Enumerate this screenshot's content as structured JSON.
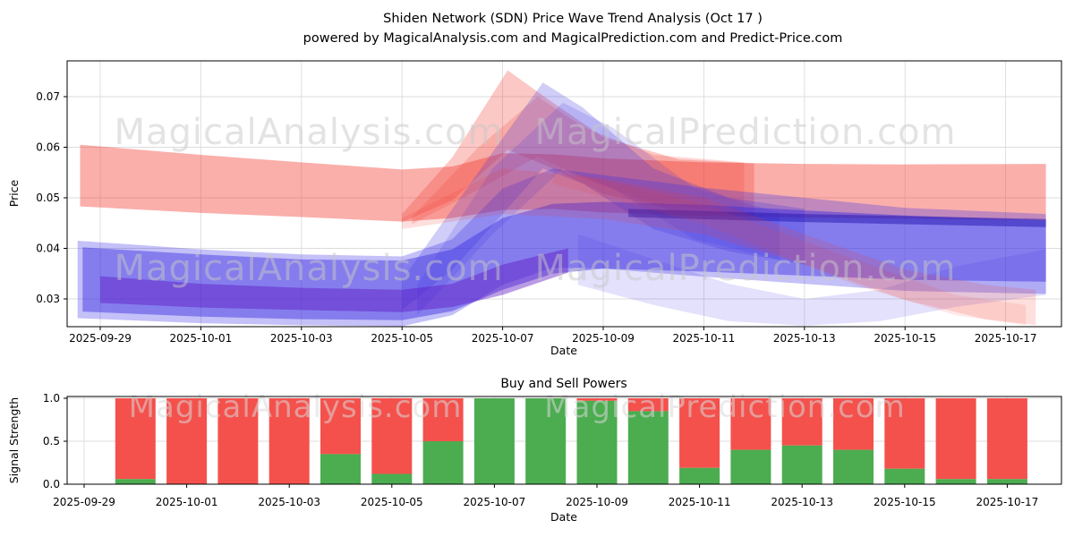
{
  "title": {
    "line1": "Shiden Network  (SDN) Price Wave Trend Analysis (Oct 17 )",
    "line2": "powered by MagicalAnalysis.com and MagicalPrediction.com and Predict-Price.com"
  },
  "watermarks": {
    "analysis": "MagicalAnalysis.com",
    "prediction": "MagicalPrediction.com"
  },
  "colors": {
    "grid": "#dcdcdc",
    "spine": "#000000",
    "buy_green": "#4cac50",
    "sell_red": "#f4514c",
    "band_red": "#f2382e",
    "band_blue": "#3a2ee0"
  },
  "chart_data": [
    {
      "type": "area",
      "name": "price-wave-trend",
      "ylabel": "Price",
      "xlabel": "Date",
      "ylim": [
        0.0245,
        0.0771
      ],
      "grid": true,
      "y_tick_labels": [
        "0.03",
        "0.04",
        "0.05",
        "0.06",
        "0.07"
      ],
      "y_tick_values": [
        0.03,
        0.04,
        0.05,
        0.06,
        0.07
      ],
      "x_tick_labels": [
        "2025-09-29",
        "2025-10-01",
        "2025-10-03",
        "2025-10-05",
        "2025-10-07",
        "2025-10-09",
        "2025-10-11",
        "2025-10-13",
        "2025-10-15",
        "2025-10-17"
      ],
      "x_tick_days": [
        0,
        2,
        4,
        6,
        8,
        10,
        12,
        14,
        16,
        18
      ],
      "bands": [
        {
          "name": "sell-main-band",
          "color": "#f2382e",
          "opacity": 0.4,
          "points": [
            [
              -0.4,
              0.0605,
              0.0483
            ],
            [
              2,
              0.0585,
              0.047
            ],
            [
              4,
              0.057,
              0.0462
            ],
            [
              6,
              0.0556,
              0.0453
            ],
            [
              7,
              0.0562,
              0.046
            ],
            [
              8,
              0.0588,
              0.0476
            ],
            [
              9,
              0.0586,
              0.0478
            ],
            [
              10,
              0.0578,
              0.0471
            ],
            [
              12,
              0.057,
              0.0464
            ],
            [
              14,
              0.0567,
              0.0461
            ],
            [
              16,
              0.0566,
              0.0459
            ],
            [
              18.8,
              0.0567,
              0.0455
            ]
          ]
        },
        {
          "name": "sell-spike-2",
          "color": "#f2382e",
          "opacity": 0.2,
          "points": [
            [
              6.2,
              0.0462,
              0.0448
            ],
            [
              7.5,
              0.0598,
              0.0515
            ],
            [
              8.7,
              0.07,
              0.0582
            ],
            [
              9.6,
              0.064,
              0.0538
            ],
            [
              11,
              0.0585,
              0.0488
            ],
            [
              12.8,
              0.057,
              0.0468
            ]
          ]
        },
        {
          "name": "sell-spike-1",
          "color": "#f2382e",
          "opacity": 0.28,
          "points": [
            [
              6,
              0.0468,
              0.0452
            ],
            [
              7,
              0.058,
              0.0495
            ],
            [
              8.1,
              0.0752,
              0.0595
            ],
            [
              9,
              0.0688,
              0.0558
            ],
            [
              10,
              0.062,
              0.0508
            ],
            [
              11.5,
              0.0576,
              0.0474
            ],
            [
              13,
              0.0568,
              0.0464
            ]
          ]
        },
        {
          "name": "buy-outer-band",
          "color": "#3a30e8",
          "opacity": 0.3,
          "points": [
            [
              -0.45,
              0.0415,
              0.0262
            ],
            [
              2,
              0.0398,
              0.0252
            ],
            [
              4,
              0.0388,
              0.0248
            ],
            [
              6,
              0.0384,
              0.0246
            ],
            [
              7,
              0.0418,
              0.0268
            ],
            [
              8,
              0.0518,
              0.0328
            ],
            [
              9,
              0.0558,
              0.0362
            ],
            [
              10,
              0.0545,
              0.036
            ],
            [
              12,
              0.052,
              0.0344
            ],
            [
              14,
              0.05,
              0.033
            ],
            [
              16,
              0.048,
              0.0316
            ],
            [
              18.8,
              0.0468,
              0.031
            ]
          ]
        },
        {
          "name": "buy-main-band",
          "color": "#3a2ee0",
          "opacity": 0.46,
          "points": [
            [
              -0.35,
              0.0402,
              0.0275
            ],
            [
              2,
              0.0388,
              0.0265
            ],
            [
              4,
              0.0378,
              0.026
            ],
            [
              6,
              0.0376,
              0.0258
            ],
            [
              7,
              0.0398,
              0.0276
            ],
            [
              8,
              0.046,
              0.0318
            ],
            [
              9,
              0.0488,
              0.035
            ],
            [
              10,
              0.0492,
              0.036
            ],
            [
              12,
              0.0486,
              0.0354
            ],
            [
              14,
              0.0475,
              0.0346
            ],
            [
              16,
              0.0465,
              0.0338
            ],
            [
              18.8,
              0.0455,
              0.0334
            ]
          ]
        },
        {
          "name": "buy-spike-2",
          "color": "#3a2ee0",
          "opacity": 0.17,
          "points": [
            [
              6.3,
              0.0328,
              0.0268
            ],
            [
              7.8,
              0.0558,
              0.0428
            ],
            [
              9.2,
              0.0688,
              0.0558
            ],
            [
              10.2,
              0.0638,
              0.0518
            ],
            [
              11.8,
              0.052,
              0.0418
            ],
            [
              13.5,
              0.047,
              0.0378
            ]
          ]
        },
        {
          "name": "buy-spike-1",
          "color": "#3a2ee0",
          "opacity": 0.24,
          "points": [
            [
              6,
              0.0338,
              0.0278
            ],
            [
              7,
              0.0478,
              0.0358
            ],
            [
              8,
              0.0618,
              0.0468
            ],
            [
              8.8,
              0.0728,
              0.0558
            ],
            [
              9.6,
              0.0678,
              0.0528
            ],
            [
              11,
              0.0558,
              0.0438
            ],
            [
              12.5,
              0.05,
              0.0394
            ],
            [
              14,
              0.0478,
              0.0368
            ]
          ]
        },
        {
          "name": "buy-sag-band",
          "color": "#3a2ee0",
          "opacity": 0.14,
          "points": [
            [
              9.5,
              0.0428,
              0.0328
            ],
            [
              11,
              0.0378,
              0.0288
            ],
            [
              12.5,
              0.033,
              0.0256
            ],
            [
              14,
              0.03,
              0.0247
            ],
            [
              15.5,
              0.0318,
              0.0256
            ],
            [
              17,
              0.0364,
              0.0284
            ],
            [
              18.8,
              0.0398,
              0.0308
            ]
          ]
        },
        {
          "name": "buy-dark-core-left",
          "color": "#5a10c0",
          "opacity": 0.42,
          "points": [
            [
              0,
              0.0345,
              0.0292
            ],
            [
              2,
              0.033,
              0.0283
            ],
            [
              4,
              0.0322,
              0.0278
            ],
            [
              6,
              0.0318,
              0.0274
            ],
            [
              7,
              0.033,
              0.0284
            ],
            [
              8,
              0.0368,
              0.0308
            ],
            [
              9.3,
              0.04,
              0.0352
            ]
          ]
        },
        {
          "name": "buy-dark-core-right",
          "color": "#2413b0",
          "opacity": 0.5,
          "points": [
            [
              10.5,
              0.0478,
              0.0462
            ],
            [
              14,
              0.0468,
              0.0452
            ],
            [
              18.8,
              0.0458,
              0.0442
            ]
          ]
        },
        {
          "name": "sell-diag-tail",
          "color": "#f2382e",
          "opacity": 0.16,
          "points": [
            [
              6,
              0.046,
              0.0438
            ],
            [
              8,
              0.0558,
              0.0468
            ],
            [
              10,
              0.0538,
              0.0458
            ],
            [
              12,
              0.05,
              0.0428
            ],
            [
              14,
              0.0428,
              0.0368
            ],
            [
              16,
              0.0358,
              0.0298
            ],
            [
              17.6,
              0.0328,
              0.026
            ],
            [
              18.6,
              0.0318,
              0.0248
            ]
          ]
        },
        {
          "name": "sell-faint-tail",
          "color": "#f2382e",
          "opacity": 0.11,
          "points": [
            [
              9,
              0.0558,
              0.0528
            ],
            [
              12,
              0.0488,
              0.0448
            ],
            [
              15,
              0.0378,
              0.0328
            ],
            [
              17,
              0.0308,
              0.0268
            ],
            [
              18.4,
              0.0288,
              0.0248
            ]
          ]
        }
      ]
    },
    {
      "type": "bar",
      "stacked": true,
      "title": "Buy and Sell Powers",
      "ylabel": "Signal Strength",
      "xlabel": "Date",
      "ylim": [
        0,
        1
      ],
      "y_tick_labels": [
        "0.0",
        "0.5",
        "1.0"
      ],
      "y_tick_values": [
        0,
        0.5,
        1.0
      ],
      "x_tick_labels": [
        "2025-09-29",
        "2025-10-01",
        "2025-10-03",
        "2025-10-05",
        "2025-10-07",
        "2025-10-09",
        "2025-10-11",
        "2025-10-13",
        "2025-10-15",
        "2025-10-17"
      ],
      "x_tick_days": [
        0,
        2,
        4,
        6,
        8,
        10,
        12,
        14,
        16,
        18
      ],
      "categories": [
        "2025-09-30",
        "2025-10-01",
        "2025-10-02",
        "2025-10-03",
        "2025-10-04",
        "2025-10-05",
        "2025-10-06",
        "2025-10-07",
        "2025-10-08",
        "2025-10-09",
        "2025-10-10",
        "2025-10-11",
        "2025-10-12",
        "2025-10-13",
        "2025-10-14",
        "2025-10-15",
        "2025-10-16",
        "2025-10-17"
      ],
      "series": [
        {
          "name": "Buy",
          "color": "#4cac50",
          "values": [
            0.06,
            0.0,
            0.0,
            0.0,
            0.35,
            0.12,
            0.5,
            1.0,
            1.0,
            0.97,
            0.85,
            0.19,
            0.4,
            0.45,
            0.4,
            0.18,
            0.06,
            0.06
          ]
        },
        {
          "name": "Sell",
          "color": "#f4514c",
          "values": [
            0.94,
            1.0,
            1.0,
            1.0,
            0.65,
            0.88,
            0.5,
            0.0,
            0.0,
            0.03,
            0.15,
            0.81,
            0.6,
            0.55,
            0.6,
            0.82,
            0.94,
            0.94
          ]
        }
      ]
    }
  ]
}
